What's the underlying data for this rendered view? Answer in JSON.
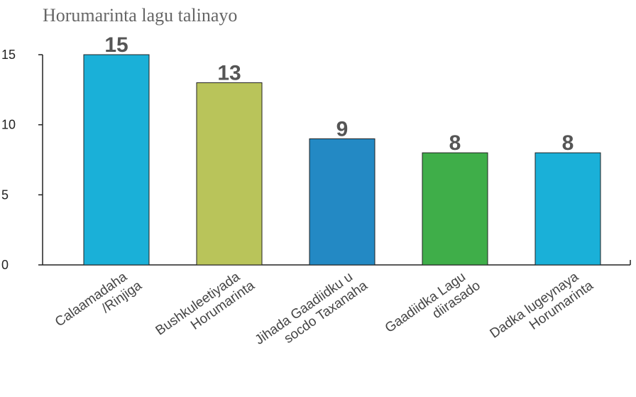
{
  "chart_data": {
    "type": "bar",
    "title": "Horumarinta lagu talinayo",
    "categories": [
      [
        "Calaamadaha",
        "/Rinjiga"
      ],
      [
        "Bushkuleetiyada",
        "Horumarinta"
      ],
      [
        "Jihada Gaadiidku u",
        "socdo Taxanaha"
      ],
      [
        "Gaadiidka Lagu",
        "diirasado"
      ],
      [
        "Dadka lugeynaya",
        "Horumarinta"
      ]
    ],
    "values": [
      15,
      13,
      9,
      8,
      8
    ],
    "colors": [
      "#1ab0d8",
      "#b9c45a",
      "#2389c4",
      "#3fae49",
      "#1ab0d8"
    ],
    "ylim": [
      0,
      15
    ],
    "yticks": [
      0,
      5,
      10,
      15
    ],
    "grid": false
  }
}
